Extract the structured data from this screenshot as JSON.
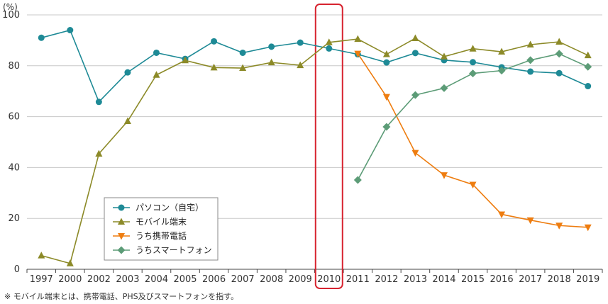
{
  "chart_data": {
    "type": "line",
    "unit_label": "(%)",
    "xlabel": "",
    "ylabel": "",
    "ylim": [
      0,
      100
    ],
    "y_ticks": [
      0,
      20,
      40,
      60,
      80,
      100
    ],
    "grid": "horizontal",
    "legend_position": "bottom-left",
    "categories": [
      "1997",
      "2000",
      "2002",
      "2003",
      "2004",
      "2005",
      "2006",
      "2007",
      "2008",
      "2009",
      "2010",
      "2011",
      "2012",
      "2013",
      "2014",
      "2015",
      "2016",
      "2017",
      "2018",
      "2019"
    ],
    "highlight_category": "2010",
    "highlight_color": "#d7232f",
    "series": [
      {
        "name": "パソコン（自宅）",
        "color": "#1e8a96",
        "marker": "circle",
        "values": [
          91.0,
          94.0,
          65.8,
          77.4,
          85.1,
          82.7,
          89.6,
          85.1,
          87.5,
          89.1,
          86.8,
          84.5,
          81.3,
          85.0,
          82.2,
          81.4,
          79.4,
          77.7,
          77.1,
          72.0
        ]
      },
      {
        "name": "モバイル端末",
        "color": "#8c8a28",
        "marker": "triangle-up",
        "values": [
          5.4,
          2.3,
          45.4,
          58.2,
          76.4,
          82.1,
          79.3,
          79.1,
          81.3,
          80.2,
          89.2,
          90.5,
          84.5,
          90.8,
          83.6,
          86.7,
          85.5,
          88.3,
          89.4,
          84.1
        ]
      },
      {
        "name": "うち携帯電話",
        "color": "#ee7d10",
        "marker": "triangle-down",
        "values": [
          null,
          null,
          null,
          null,
          null,
          null,
          null,
          null,
          null,
          null,
          null,
          84.8,
          67.8,
          45.8,
          37.0,
          33.3,
          21.6,
          19.3,
          17.2,
          16.5
        ]
      },
      {
        "name": "うちスマートフォン",
        "color": "#5c9c77",
        "marker": "diamond",
        "values": [
          null,
          null,
          null,
          null,
          null,
          null,
          null,
          null,
          null,
          null,
          null,
          35.1,
          56.0,
          68.5,
          71.2,
          77.0,
          78.1,
          82.2,
          84.7,
          79.6
        ]
      }
    ]
  },
  "footnote": "※ モバイル端末とは、携帯電話、PHS及びスマートフォンを指す。"
}
